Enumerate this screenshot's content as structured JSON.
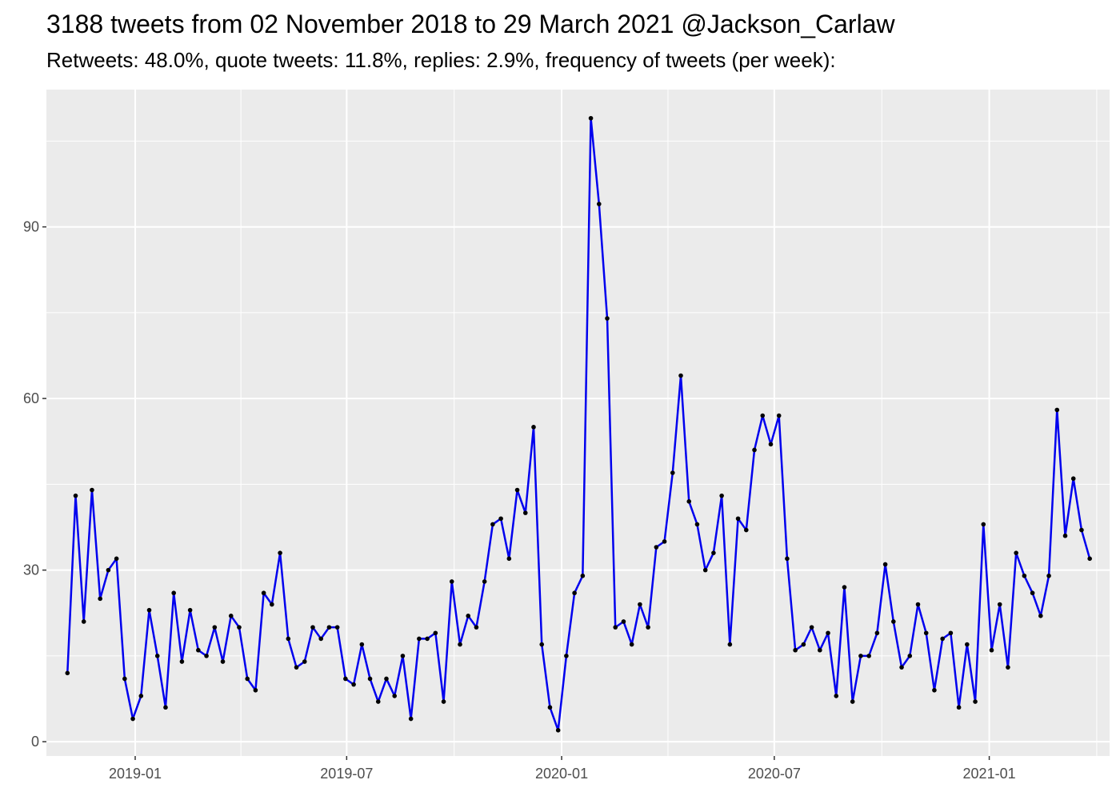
{
  "chart_data": {
    "type": "line",
    "title": "3188 tweets from 02 November 2018 to 29 March 2021 @Jackson_Carlaw",
    "subtitle": "Retweets: 48.0%, quote tweets: 11.8%, replies: 2.9%, frequency of tweets (per week):",
    "xlabel": "",
    "ylabel": "",
    "grid": true,
    "xlim": [
      "2018-10-17",
      "2021-04-14"
    ],
    "ylim": [
      -2.5,
      114
    ],
    "x_ticks": [
      "2019-01",
      "2019-07",
      "2020-01",
      "2020-07",
      "2021-01"
    ],
    "y_ticks": [
      0,
      30,
      60,
      90
    ],
    "series": [
      {
        "line_color": "#0000ee",
        "point_color": "#000000",
        "start_date": "2018-11-04",
        "interval_days": 7,
        "values": [
          12,
          43,
          21,
          44,
          25,
          30,
          32,
          11,
          4,
          8,
          23,
          15,
          6,
          26,
          14,
          23,
          16,
          15,
          20,
          14,
          22,
          20,
          11,
          9,
          26,
          24,
          33,
          18,
          13,
          14,
          20,
          18,
          20,
          20,
          11,
          10,
          17,
          11,
          7,
          11,
          8,
          15,
          4,
          18,
          18,
          19,
          7,
          28,
          17,
          22,
          20,
          28,
          38,
          39,
          32,
          44,
          40,
          55,
          17,
          6,
          2,
          15,
          26,
          29,
          109,
          94,
          74,
          20,
          21,
          17,
          24,
          20,
          34,
          35,
          47,
          64,
          42,
          38,
          30,
          33,
          43,
          17,
          39,
          37,
          51,
          57,
          52,
          57,
          32,
          16,
          17,
          20,
          16,
          19,
          8,
          27,
          7,
          15,
          15,
          19,
          31,
          21,
          13,
          15,
          24,
          19,
          9,
          18,
          19,
          6,
          17,
          7,
          38,
          16,
          24,
          13,
          33,
          29,
          26,
          22,
          29,
          58,
          36,
          46,
          37,
          32
        ]
      }
    ]
  }
}
